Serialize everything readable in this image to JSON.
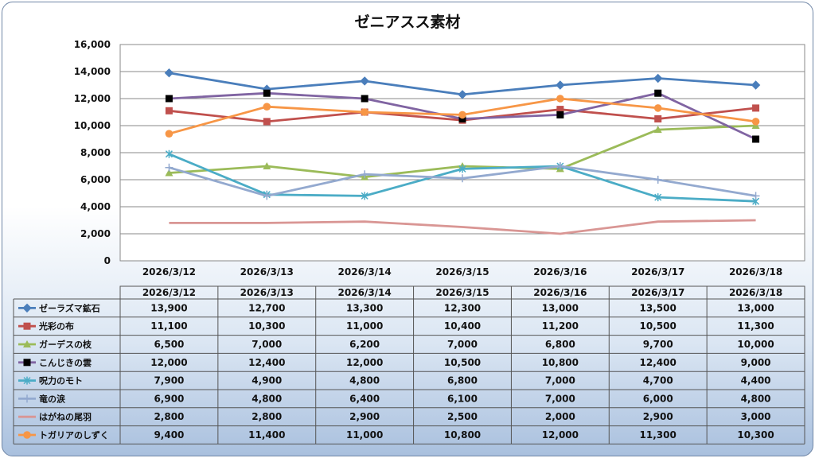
{
  "chart_data": {
    "type": "line",
    "title": "ゼニアスス素材",
    "categories": [
      "2026/3/12",
      "2026/3/13",
      "2026/3/14",
      "2026/3/15",
      "2026/3/16",
      "2026/3/17",
      "2026/3/18"
    ],
    "ylim": [
      0,
      16000
    ],
    "y_ticks": [
      "16,000",
      "14,000",
      "12,000",
      "10,000",
      "8,000",
      "6,000",
      "4,000",
      "2,000",
      "0"
    ],
    "grid": true,
    "legend": "data-table",
    "series": [
      {
        "name": "ゼーラズマ鉱石",
        "color": "#4a7ebb",
        "marker": "diamond",
        "values": [
          13900,
          12700,
          13300,
          12300,
          13000,
          13500,
          13000
        ],
        "labels": [
          "13,900",
          "12,700",
          "13,300",
          "12,300",
          "13,000",
          "13,500",
          "13,000"
        ]
      },
      {
        "name": "光彩の布",
        "color": "#c0504d",
        "marker": "square",
        "values": [
          11100,
          10300,
          11000,
          10400,
          11200,
          10500,
          11300
        ],
        "labels": [
          "11,100",
          "10,300",
          "11,000",
          "10,400",
          "11,200",
          "10,500",
          "11,300"
        ]
      },
      {
        "name": "ガーデスの枝",
        "color": "#9bbb59",
        "marker": "triangle",
        "values": [
          6500,
          7000,
          6200,
          7000,
          6800,
          9700,
          10000
        ],
        "labels": [
          "6,500",
          "7,000",
          "6,200",
          "7,000",
          "6,800",
          "9,700",
          "10,000"
        ]
      },
      {
        "name": "こんじきの雲",
        "color": "#8064a2",
        "marker": "blacksquare",
        "values": [
          12000,
          12400,
          12000,
          10500,
          10800,
          12400,
          9000
        ],
        "labels": [
          "12,000",
          "12,400",
          "12,000",
          "10,500",
          "10,800",
          "12,400",
          "9,000"
        ]
      },
      {
        "name": "呪力のモト",
        "color": "#4bacc6",
        "marker": "star",
        "values": [
          7900,
          4900,
          4800,
          6800,
          7000,
          4700,
          4400
        ],
        "labels": [
          "7,900",
          "4,900",
          "4,800",
          "6,800",
          "7,000",
          "4,700",
          "4,400"
        ]
      },
      {
        "name": "竜の涙",
        "color": "#93a9cf",
        "marker": "plus",
        "values": [
          6900,
          4800,
          6400,
          6100,
          7000,
          6000,
          4800
        ],
        "labels": [
          "6,900",
          "4,800",
          "6,400",
          "6,100",
          "7,000",
          "6,000",
          "4,800"
        ]
      },
      {
        "name": "はがねの尾羽",
        "color": "#d99694",
        "marker": "none",
        "values": [
          2800,
          2800,
          2900,
          2500,
          2000,
          2900,
          3000
        ],
        "labels": [
          "2,800",
          "2,800",
          "2,900",
          "2,500",
          "2,000",
          "2,900",
          "3,000"
        ]
      },
      {
        "name": "トガリアのしずく",
        "color": "#f79646",
        "marker": "circle",
        "values": [
          9400,
          11400,
          11000,
          10800,
          12000,
          11300,
          10300
        ],
        "labels": [
          "9,400",
          "11,400",
          "11,000",
          "10,800",
          "12,000",
          "11,300",
          "10,300"
        ]
      }
    ]
  }
}
